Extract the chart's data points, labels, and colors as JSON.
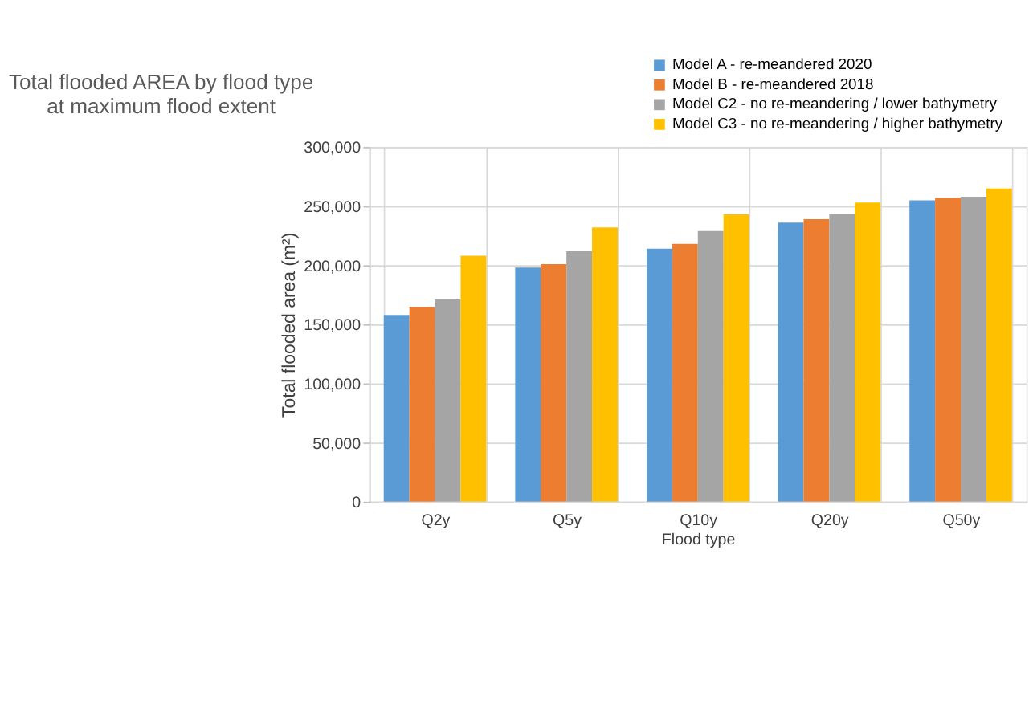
{
  "chart_data": {
    "type": "bar",
    "title": [
      "Total flooded AREA by flood type",
      "at maximum flood extent"
    ],
    "xlabel": "Flood type",
    "ylabel": "Total flooded area (m²)",
    "categories": [
      "Q2y",
      "Q5y",
      "Q10y",
      "Q20y",
      "Q50y"
    ],
    "series": [
      {
        "name": "Model A - re-meandered 2020",
        "color": "#5b9bd5",
        "values": [
          158000,
          198000,
          214000,
          236000,
          255000
        ]
      },
      {
        "name": "Model B - re-meandered 2018",
        "color": "#ed7d31",
        "values": [
          165000,
          201000,
          218000,
          239000,
          257000
        ]
      },
      {
        "name": "Model C2 - no re-meandering / lower bathymetry",
        "color": "#a5a5a5",
        "values": [
          171000,
          212000,
          229000,
          243000,
          258000
        ]
      },
      {
        "name": "Model C3 - no re-meandering / higher bathymetry",
        "color": "#ffc000",
        "values": [
          208000,
          232000,
          243000,
          253000,
          265000
        ]
      }
    ],
    "ylim": [
      0,
      300000
    ],
    "yticks": [
      {
        "value": 0,
        "label": "0"
      },
      {
        "value": 50000,
        "label": "50,000"
      },
      {
        "value": 100000,
        "label": "100,000"
      },
      {
        "value": 150000,
        "label": "150,000"
      },
      {
        "value": 200000,
        "label": "200,000"
      },
      {
        "value": 250000,
        "label": "250,000"
      },
      {
        "value": 300000,
        "label": "300,000"
      }
    ],
    "grid": true,
    "legend": "top right"
  }
}
